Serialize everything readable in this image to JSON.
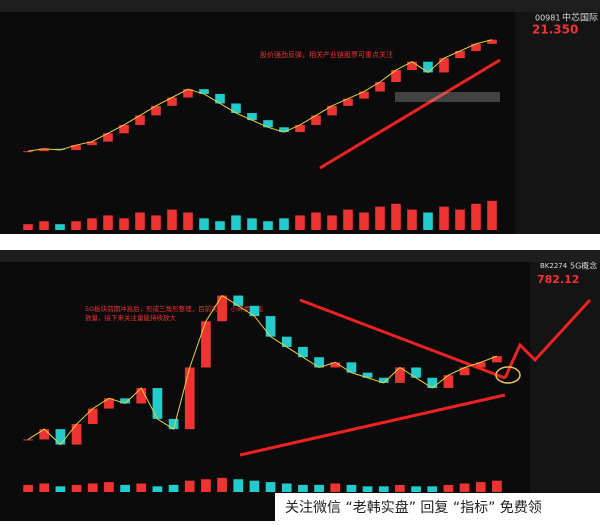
{
  "top_chart": {
    "code": "00981",
    "name": "中芯国际",
    "last": "21.350",
    "annotation": "股价强劲反弹，相关产业链股票可重点关注",
    "prices": [
      12.0,
      12.2,
      12.1,
      12.5,
      12.8,
      13.5,
      14.2,
      15.0,
      15.8,
      16.5,
      17.2,
      16.8,
      16.0,
      15.2,
      14.6,
      14.0,
      13.6,
      14.2,
      15.0,
      15.8,
      16.4,
      17.0,
      17.8,
      18.8,
      19.5,
      18.6,
      19.8,
      20.4,
      21.0,
      21.35
    ],
    "ylim": [
      10,
      23
    ],
    "volumes": [
      2,
      3,
      2,
      3,
      4,
      5,
      4,
      6,
      5,
      7,
      6,
      4,
      3,
      5,
      4,
      3,
      4,
      5,
      6,
      5,
      7,
      6,
      8,
      9,
      7,
      6,
      8,
      7,
      9,
      10
    ],
    "vlim": [
      0,
      12
    ]
  },
  "bottom_chart": {
    "code": "BK2274",
    "name": "5G概念",
    "last": "782.12",
    "annotation": "5G板块前期冲高后，形成三角形整理，目前突破，小碎步量能放量，接下来关注量能持续放大",
    "prices": [
      620,
      640,
      610,
      650,
      680,
      700,
      690,
      720,
      660,
      640,
      760,
      850,
      900,
      880,
      860,
      820,
      800,
      780,
      760,
      770,
      750,
      740,
      730,
      760,
      740,
      720,
      745,
      760,
      770,
      782.12
    ],
    "ylim": [
      580,
      940
    ],
    "volumes": [
      5,
      6,
      4,
      5,
      6,
      7,
      5,
      6,
      4,
      5,
      8,
      9,
      10,
      9,
      8,
      7,
      6,
      5,
      5,
      6,
      5,
      4,
      4,
      5,
      4,
      4,
      5,
      6,
      7,
      8
    ],
    "vlim": [
      0,
      12
    ]
  },
  "watermark": "关注微信 “老韩实盘” 回复 “指标” 免费领"
}
